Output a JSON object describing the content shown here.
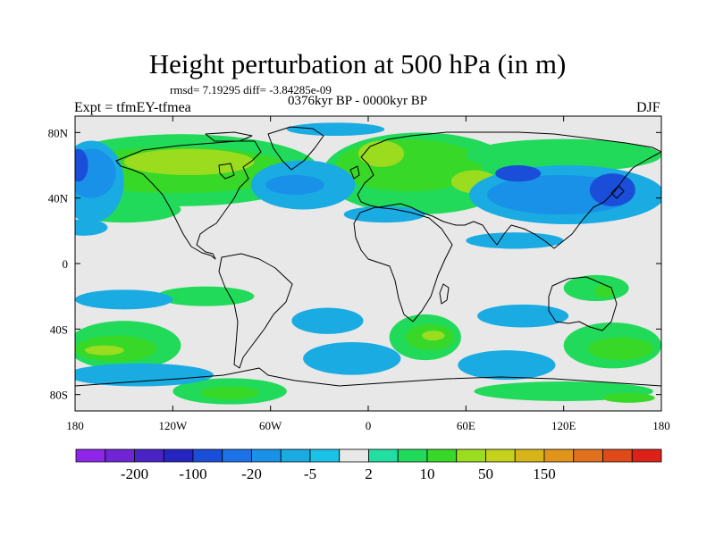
{
  "title": "Height perturbation at 500 hPa (in m)",
  "stats": "rmsd= 7.19295 diff= -3.84285e-09",
  "period": "0376kyr BP - 0000kyr BP",
  "experiment": "Expt = tfmEY-tfmea",
  "season": "DJF",
  "map": {
    "projection": "cylindrical-equidistant",
    "lon_range": [
      -180,
      180
    ],
    "lat_range": [
      -90,
      90
    ],
    "x_ticks": [
      {
        "value": -180,
        "label": "180"
      },
      {
        "value": -120,
        "label": "120W"
      },
      {
        "value": -60,
        "label": "60W"
      },
      {
        "value": 0,
        "label": "0"
      },
      {
        "value": 60,
        "label": "60E"
      },
      {
        "value": 120,
        "label": "120E"
      },
      {
        "value": 180,
        "label": "180"
      }
    ],
    "y_ticks": [
      {
        "value": 80,
        "label": "80N"
      },
      {
        "value": 40,
        "label": "40N"
      },
      {
        "value": 0,
        "label": "0"
      },
      {
        "value": -40,
        "label": "40S"
      },
      {
        "value": -80,
        "label": "80S"
      }
    ],
    "background_color": "#e8e8e8",
    "contour_regions": [
      {
        "name": "na-outer",
        "level": 5,
        "cx": -115,
        "cy": 57,
        "rx": 85,
        "ry": 22
      },
      {
        "name": "na-inner",
        "level": 10,
        "cx": -118,
        "cy": 57,
        "rx": 72,
        "ry": 14
      },
      {
        "name": "na-core",
        "level": 20,
        "cx": -110,
        "cy": 62,
        "rx": 40,
        "ry": 8
      },
      {
        "name": "na-south",
        "level": 5,
        "cx": -150,
        "cy": 33,
        "rx": 35,
        "ry": 8
      },
      {
        "name": "eu-outer",
        "level": 5,
        "cx": 32,
        "cy": 55,
        "rx": 60,
        "ry": 25
      },
      {
        "name": "eu-inner",
        "level": 10,
        "cx": 25,
        "cy": 60,
        "rx": 45,
        "ry": 16
      },
      {
        "name": "eu-core",
        "level": 20,
        "cx": 8,
        "cy": 67,
        "rx": 14,
        "ry": 8
      },
      {
        "name": "eu-east",
        "level": 20,
        "cx": 65,
        "cy": 50,
        "rx": 14,
        "ry": 7
      },
      {
        "name": "nh-east-belt",
        "level": 5,
        "cx": 120,
        "cy": 66,
        "rx": 60,
        "ry": 10
      },
      {
        "name": "sa-mid",
        "level": 5,
        "cx": -100,
        "cy": -20,
        "rx": 30,
        "ry": 6
      },
      {
        "name": "aus-n",
        "level": 5,
        "cx": 140,
        "cy": -15,
        "rx": 20,
        "ry": 8
      },
      {
        "name": "aus-core",
        "level": 10,
        "cx": 145,
        "cy": -17,
        "rx": 6,
        "ry": 4
      },
      {
        "name": "sh-pac-outer",
        "level": 5,
        "cx": -150,
        "cy": -50,
        "rx": 35,
        "ry": 15
      },
      {
        "name": "sh-pac-inner",
        "level": 10,
        "cx": -155,
        "cy": -52,
        "rx": 25,
        "ry": 8
      },
      {
        "name": "sh-pac-core",
        "level": 20,
        "cx": -162,
        "cy": -53,
        "rx": 12,
        "ry": 3
      },
      {
        "name": "sh-atl-outer",
        "level": 5,
        "cx": 35,
        "cy": -45,
        "rx": 22,
        "ry": 14
      },
      {
        "name": "sh-atl-inner",
        "level": 10,
        "cx": 38,
        "cy": -45,
        "rx": 15,
        "ry": 8
      },
      {
        "name": "sh-atl-core",
        "level": 20,
        "cx": 40,
        "cy": -44,
        "rx": 7,
        "ry": 3
      },
      {
        "name": "sh-east-outer",
        "level": 5,
        "cx": 150,
        "cy": -50,
        "rx": 30,
        "ry": 14
      },
      {
        "name": "sh-east-inner",
        "level": 10,
        "cx": 155,
        "cy": -52,
        "rx": 20,
        "ry": 7
      },
      {
        "name": "ant-w",
        "level": 5,
        "cx": -85,
        "cy": -78,
        "rx": 35,
        "ry": 8
      },
      {
        "name": "ant-w-core",
        "level": 10,
        "cx": -85,
        "cy": -79,
        "rx": 18,
        "ry": 4
      },
      {
        "name": "ant-e",
        "level": 5,
        "cx": 120,
        "cy": -78,
        "rx": 55,
        "ry": 6
      },
      {
        "name": "ant-e-core",
        "level": 10,
        "cx": 160,
        "cy": -82,
        "rx": 16,
        "ry": 3
      },
      {
        "name": "sh-belt-pac",
        "level": -2,
        "cx": -140,
        "cy": -68,
        "rx": 45,
        "ry": 7
      },
      {
        "name": "sh-belt-atl",
        "level": -2,
        "cx": -10,
        "cy": -58,
        "rx": 30,
        "ry": 10
      },
      {
        "name": "sh-belt-ind",
        "level": -2,
        "cx": 85,
        "cy": -62,
        "rx": 30,
        "ry": 9
      },
      {
        "name": "sh-trop-neg-w",
        "level": -2,
        "cx": -150,
        "cy": -22,
        "rx": 30,
        "ry": 6
      },
      {
        "name": "sh-trop-neg-c",
        "level": -2,
        "cx": -25,
        "cy": -35,
        "rx": 22,
        "ry": 8
      },
      {
        "name": "sh-trop-neg-e",
        "level": -2,
        "cx": 95,
        "cy": -32,
        "rx": 28,
        "ry": 7
      },
      {
        "name": "asia-neg",
        "level": -2,
        "cx": 122,
        "cy": 42,
        "rx": 60,
        "ry": 18
      },
      {
        "name": "asia-neg-mid",
        "level": -5,
        "cx": 118,
        "cy": 42,
        "rx": 45,
        "ry": 12
      },
      {
        "name": "asia-neg-core",
        "level": -20,
        "cx": 92,
        "cy": 55,
        "rx": 14,
        "ry": 5
      },
      {
        "name": "asia-neg-core2",
        "level": -20,
        "cx": 150,
        "cy": 45,
        "rx": 14,
        "ry": 10
      },
      {
        "name": "pac-neg",
        "level": -2,
        "cx": -170,
        "cy": 50,
        "rx": 20,
        "ry": 25
      },
      {
        "name": "pac-neg-mid",
        "level": -5,
        "cx": -170,
        "cy": 55,
        "rx": 15,
        "ry": 15
      },
      {
        "name": "pac-neg-core",
        "level": -20,
        "cx": -178,
        "cy": 60,
        "rx": 6,
        "ry": 10
      },
      {
        "name": "atl-neg",
        "level": -2,
        "cx": -40,
        "cy": 48,
        "rx": 32,
        "ry": 15
      },
      {
        "name": "atl-neg-mid",
        "level": -5,
        "cx": -45,
        "cy": 48,
        "rx": 18,
        "ry": 6
      },
      {
        "name": "arctic-neg",
        "level": -2,
        "cx": -20,
        "cy": 82,
        "rx": 30,
        "ry": 4
      },
      {
        "name": "trop-atl-neg",
        "level": -2,
        "cx": 10,
        "cy": 30,
        "rx": 25,
        "ry": 5
      },
      {
        "name": "ind-neg",
        "level": -2,
        "cx": 90,
        "cy": 14,
        "rx": 30,
        "ry": 5
      },
      {
        "name": "pac-trop-neg",
        "level": -2,
        "cx": -175,
        "cy": 22,
        "rx": 15,
        "ry": 5
      }
    ]
  },
  "colorbar": {
    "colors": [
      "#8e26e8",
      "#6f24d6",
      "#4a23c6",
      "#2524c0",
      "#1a4ed8",
      "#1a72e6",
      "#1991e8",
      "#19abe2",
      "#19c2e6",
      "#e8e8e8",
      "#22dea0",
      "#22da5a",
      "#38d828",
      "#9cdc1f",
      "#c4d21b",
      "#d8b41b",
      "#e0941b",
      "#e0701b",
      "#e04a1b",
      "#dc2218"
    ],
    "levels": [
      -200,
      -100,
      -50,
      -20,
      -10,
      -5,
      -2,
      -1,
      1,
      2,
      5,
      10,
      20,
      50,
      100,
      150,
      200
    ],
    "labels": [
      {
        "text": "-200",
        "at": 1
      },
      {
        "text": "-100",
        "at": 3
      },
      {
        "text": "-20",
        "at": 5
      },
      {
        "text": "-5",
        "at": 7
      },
      {
        "text": "2",
        "at": 9
      },
      {
        "text": "10",
        "at": 11
      },
      {
        "text": "50",
        "at": 13
      },
      {
        "text": "150",
        "at": 15
      }
    ]
  },
  "colors": {
    "nh_positive_5": "#22dea0",
    "nh_positive_10": "#38d828",
    "nh_positive_20": "#9cdc1f",
    "negative_2": "#19c2e6",
    "negative_5": "#19abe2",
    "negative_20": "#1a72e6"
  }
}
